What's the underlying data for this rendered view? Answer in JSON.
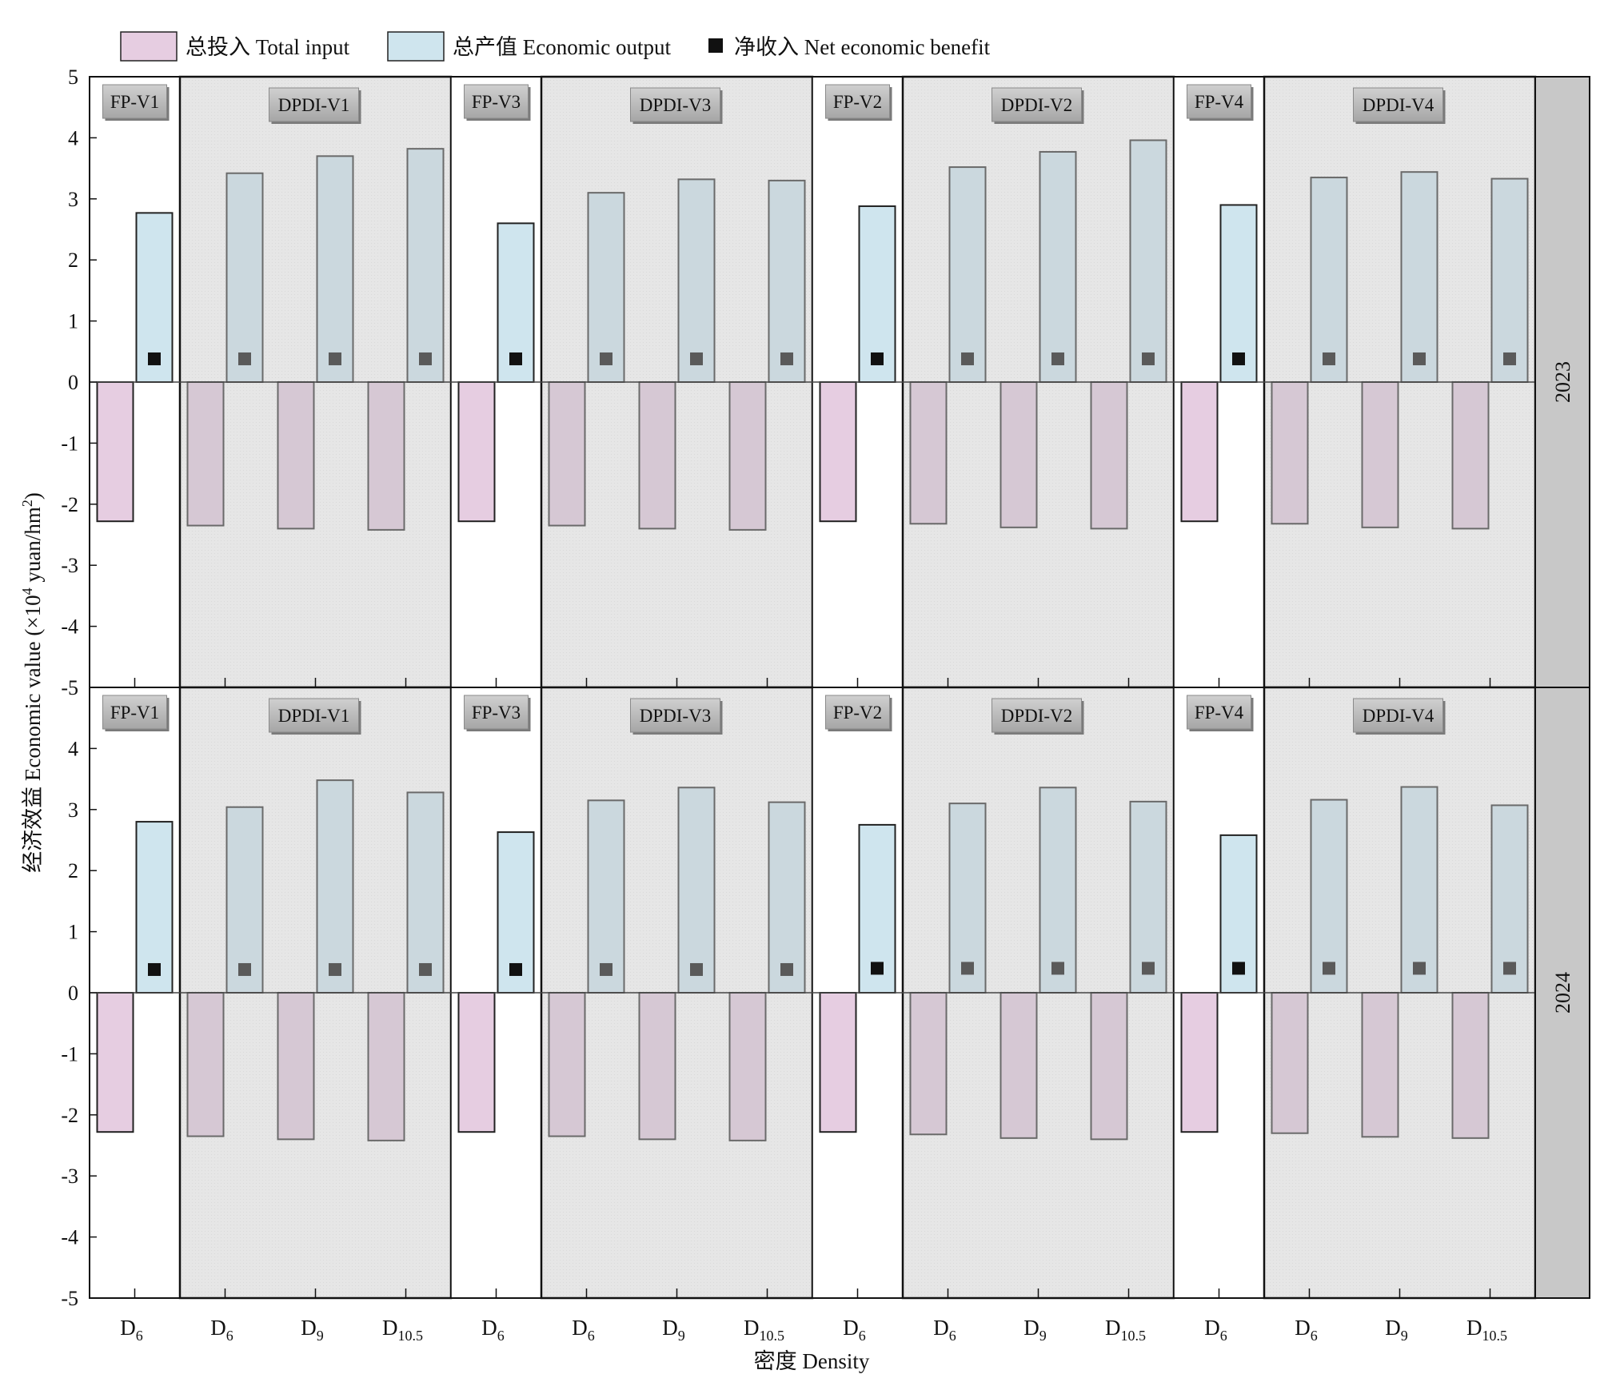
{
  "chart_data": {
    "type": "bar",
    "xlabel": "密度 Density",
    "ylabel_prefix": "经济效益 Economic value (×10",
    "ylabel_sup": "4",
    "ylabel_mid": " yuan/hm",
    "ylabel_sup2": "2",
    "ylabel_suffix": ")",
    "ylim": [
      -5,
      5
    ],
    "yticks": [
      5,
      4,
      3,
      2,
      1,
      0,
      -1,
      -2,
      -3,
      -4,
      -5
    ],
    "grid": false,
    "legend_position": "top-left",
    "legend": [
      {
        "label": "总投入 Total input",
        "color": "#e6cde1"
      },
      {
        "label": "总产值 Economic output",
        "color": "#cfe5ee"
      },
      {
        "label": "净收入 Net economic benefit",
        "color": "#111111"
      }
    ],
    "categories": [
      "D6",
      "D6",
      "D9",
      "D10.5",
      "D6",
      "D6",
      "D9",
      "D10.5",
      "D6",
      "D6",
      "D9",
      "D10.5",
      "D6",
      "D6",
      "D9",
      "D10.5"
    ],
    "category_labels": [
      {
        "base": "D",
        "sub": "6"
      },
      {
        "base": "D",
        "sub": "6"
      },
      {
        "base": "D",
        "sub": "9"
      },
      {
        "base": "D",
        "sub": "10.5"
      },
      {
        "base": "D",
        "sub": "6"
      },
      {
        "base": "D",
        "sub": "6"
      },
      {
        "base": "D",
        "sub": "9"
      },
      {
        "base": "D",
        "sub": "10.5"
      },
      {
        "base": "D",
        "sub": "6"
      },
      {
        "base": "D",
        "sub": "6"
      },
      {
        "base": "D",
        "sub": "9"
      },
      {
        "base": "D",
        "sub": "10.5"
      },
      {
        "base": "D",
        "sub": "6"
      },
      {
        "base": "D",
        "sub": "6"
      },
      {
        "base": "D",
        "sub": "9"
      },
      {
        "base": "D",
        "sub": "10.5"
      }
    ],
    "groups": [
      {
        "label": "FP-V1",
        "shaded": false,
        "count": 1
      },
      {
        "label": "DPDI-V1",
        "shaded": true,
        "count": 3
      },
      {
        "label": "FP-V3",
        "shaded": false,
        "count": 1
      },
      {
        "label": "DPDI-V3",
        "shaded": true,
        "count": 3
      },
      {
        "label": "FP-V2",
        "shaded": false,
        "count": 1
      },
      {
        "label": "DPDI-V2",
        "shaded": true,
        "count": 3
      },
      {
        "label": "FP-V4",
        "shaded": false,
        "count": 1
      },
      {
        "label": "DPDI-V4",
        "shaded": true,
        "count": 3
      }
    ],
    "panels": [
      {
        "year": "2023",
        "series": [
          {
            "name": "总投入 Total input",
            "values": [
              -2.28,
              -2.35,
              -2.4,
              -2.42,
              -2.28,
              -2.35,
              -2.4,
              -2.42,
              -2.28,
              -2.32,
              -2.38,
              -2.4,
              -2.28,
              -2.32,
              -2.38,
              -2.4
            ]
          },
          {
            "name": "总产值 Economic output",
            "values": [
              2.77,
              3.42,
              3.7,
              3.82,
              2.6,
              3.1,
              3.32,
              3.3,
              2.88,
              3.52,
              3.77,
              3.96,
              2.9,
              3.35,
              3.44,
              3.33
            ]
          },
          {
            "name": "净收入 Net economic benefit",
            "values": [
              0.38,
              0.38,
              0.38,
              0.38,
              0.38,
              0.38,
              0.38,
              0.38,
              0.38,
              0.38,
              0.38,
              0.38,
              0.38,
              0.38,
              0.38,
              0.38
            ]
          }
        ]
      },
      {
        "year": "2024",
        "series": [
          {
            "name": "总投入 Total input",
            "values": [
              -2.28,
              -2.35,
              -2.4,
              -2.42,
              -2.28,
              -2.35,
              -2.4,
              -2.42,
              -2.28,
              -2.32,
              -2.38,
              -2.4,
              -2.28,
              -2.3,
              -2.36,
              -2.38
            ]
          },
          {
            "name": "总产值 Economic output",
            "values": [
              2.8,
              3.04,
              3.48,
              3.28,
              2.63,
              3.15,
              3.36,
              3.12,
              2.75,
              3.1,
              3.36,
              3.13,
              2.58,
              3.16,
              3.37,
              3.07
            ]
          },
          {
            "name": "净收入 Net economic benefit",
            "values": [
              0.38,
              0.38,
              0.38,
              0.38,
              0.38,
              0.38,
              0.38,
              0.38,
              0.4,
              0.4,
              0.4,
              0.4,
              0.4,
              0.4,
              0.4,
              0.4
            ]
          }
        ]
      }
    ]
  }
}
